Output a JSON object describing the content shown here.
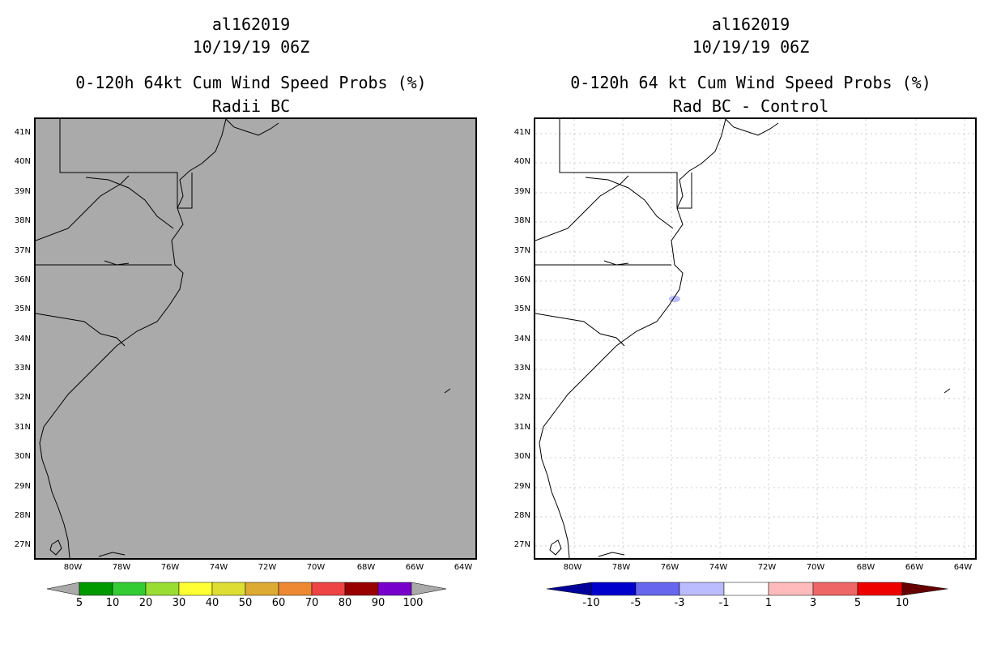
{
  "left_panel": {
    "storm_id": "al162019",
    "datetime": "10/19/19 06Z",
    "title": "0-120h 64kt Cum Wind Speed Probs (%)",
    "subtitle": "Radii BC",
    "background_color": "#aaaaaa"
  },
  "right_panel": {
    "storm_id": "al162019",
    "datetime": "10/19/19 06Z",
    "title": "0-120h 64 kt Cum Wind Speed Probs (%)",
    "subtitle": "Rad BC - Control",
    "background_color": "#ffffff"
  },
  "lat_labels": [
    "41N",
    "40N",
    "39N",
    "38N",
    "37N",
    "36N",
    "35N",
    "34N",
    "33N",
    "32N",
    "31N",
    "30N",
    "29N",
    "28N",
    "27N"
  ],
  "lon_labels": [
    "80W",
    "78W",
    "76W",
    "74W",
    "72W",
    "70W",
    "68W",
    "66W",
    "64W"
  ],
  "left_colorbar": {
    "labels": [
      "5",
      "10",
      "20",
      "30",
      "40",
      "50",
      "60",
      "70",
      "80",
      "90",
      "100"
    ],
    "colors": [
      "#009900",
      "#33cc33",
      "#99dd33",
      "#ffff33",
      "#dddd33",
      "#ddaa33",
      "#ee8833",
      "#ee4444",
      "#990000",
      "#7700cc"
    ],
    "end_color": "#aaaaaa"
  },
  "right_colorbar": {
    "labels": [
      "-10",
      "-5",
      "-3",
      "-1",
      "1",
      "3",
      "5",
      "10"
    ],
    "colors": [
      "#0000cc",
      "#6666ee",
      "#bbbbff",
      "#ffffff",
      "#ffbbbb",
      "#ee6666",
      "#ee0000"
    ],
    "low_end_color": "#000099",
    "high_end_color": "#660000"
  }
}
